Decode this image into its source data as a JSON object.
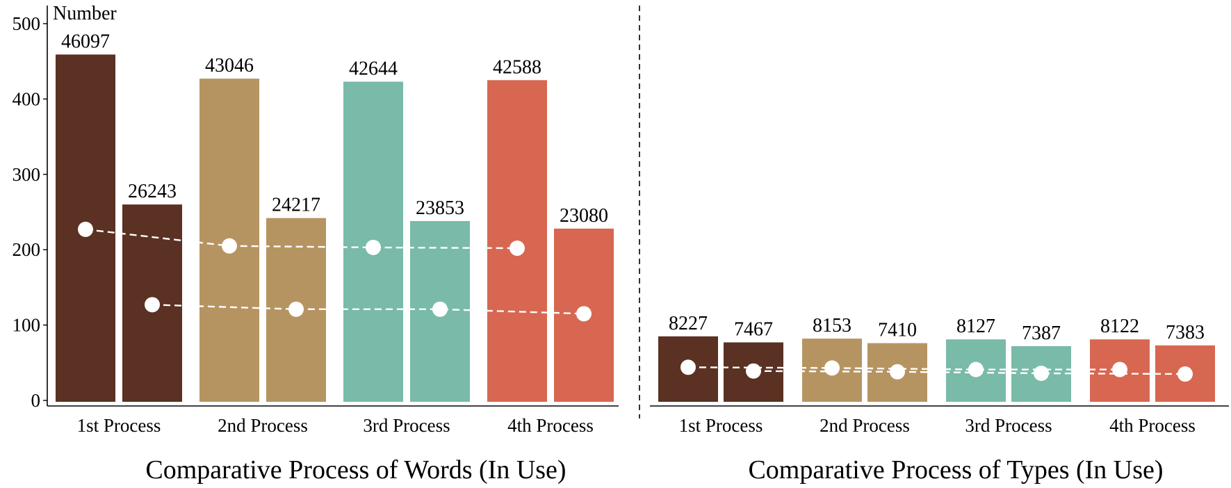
{
  "chart_data": [
    {
      "type": "bar",
      "title": "Comparative Process of Words (In Use)",
      "ylabel": "Number",
      "ylim": [
        0,
        500
      ],
      "yticks": [
        0,
        100,
        200,
        300,
        400,
        500
      ],
      "categories": [
        "1st Process",
        "2nd Process",
        "3rd Process",
        "4th Process"
      ],
      "series": [
        {
          "values": [
            46097,
            43046,
            42644,
            42588
          ],
          "labels": [
            "46097",
            "43046",
            "42644",
            "42588"
          ]
        },
        {
          "values": [
            26243,
            24217,
            23853,
            23080
          ],
          "labels": [
            "26243",
            "24217",
            "23853",
            "23080"
          ]
        }
      ],
      "overlay_points": [
        {
          "values": [
            227,
            205,
            203,
            202
          ]
        },
        {
          "values": [
            127,
            121,
            121,
            115
          ]
        }
      ],
      "bar_values_in_axis_units": [
        [
          459,
          427,
          423,
          425
        ],
        [
          260,
          242,
          238,
          228
        ]
      ]
    },
    {
      "type": "bar",
      "title": "Comparative Process of Types (In Use)",
      "categories": [
        "1st Process",
        "2nd Process",
        "3rd Process",
        "4th Process"
      ],
      "series": [
        {
          "values": [
            8227,
            8153,
            8127,
            8122
          ],
          "labels": [
            "8227",
            "8153",
            "8127",
            "8122"
          ]
        },
        {
          "values": [
            7467,
            7410,
            7387,
            7383
          ],
          "labels": [
            "7467",
            "7410",
            "7387",
            "7383"
          ]
        }
      ],
      "overlay_points": [
        {
          "values": [
            44,
            43,
            41,
            41
          ]
        },
        {
          "values": [
            39,
            38,
            36,
            35
          ]
        }
      ],
      "bar_values_in_axis_units": [
        [
          85,
          82,
          81,
          81
        ],
        [
          77,
          76,
          72,
          73
        ]
      ]
    }
  ],
  "colors": {
    "categories": [
      "#5a3122",
      "#b69462",
      "#79baa9",
      "#d86751"
    ],
    "points": "#ffffff",
    "axis": "#000000"
  }
}
